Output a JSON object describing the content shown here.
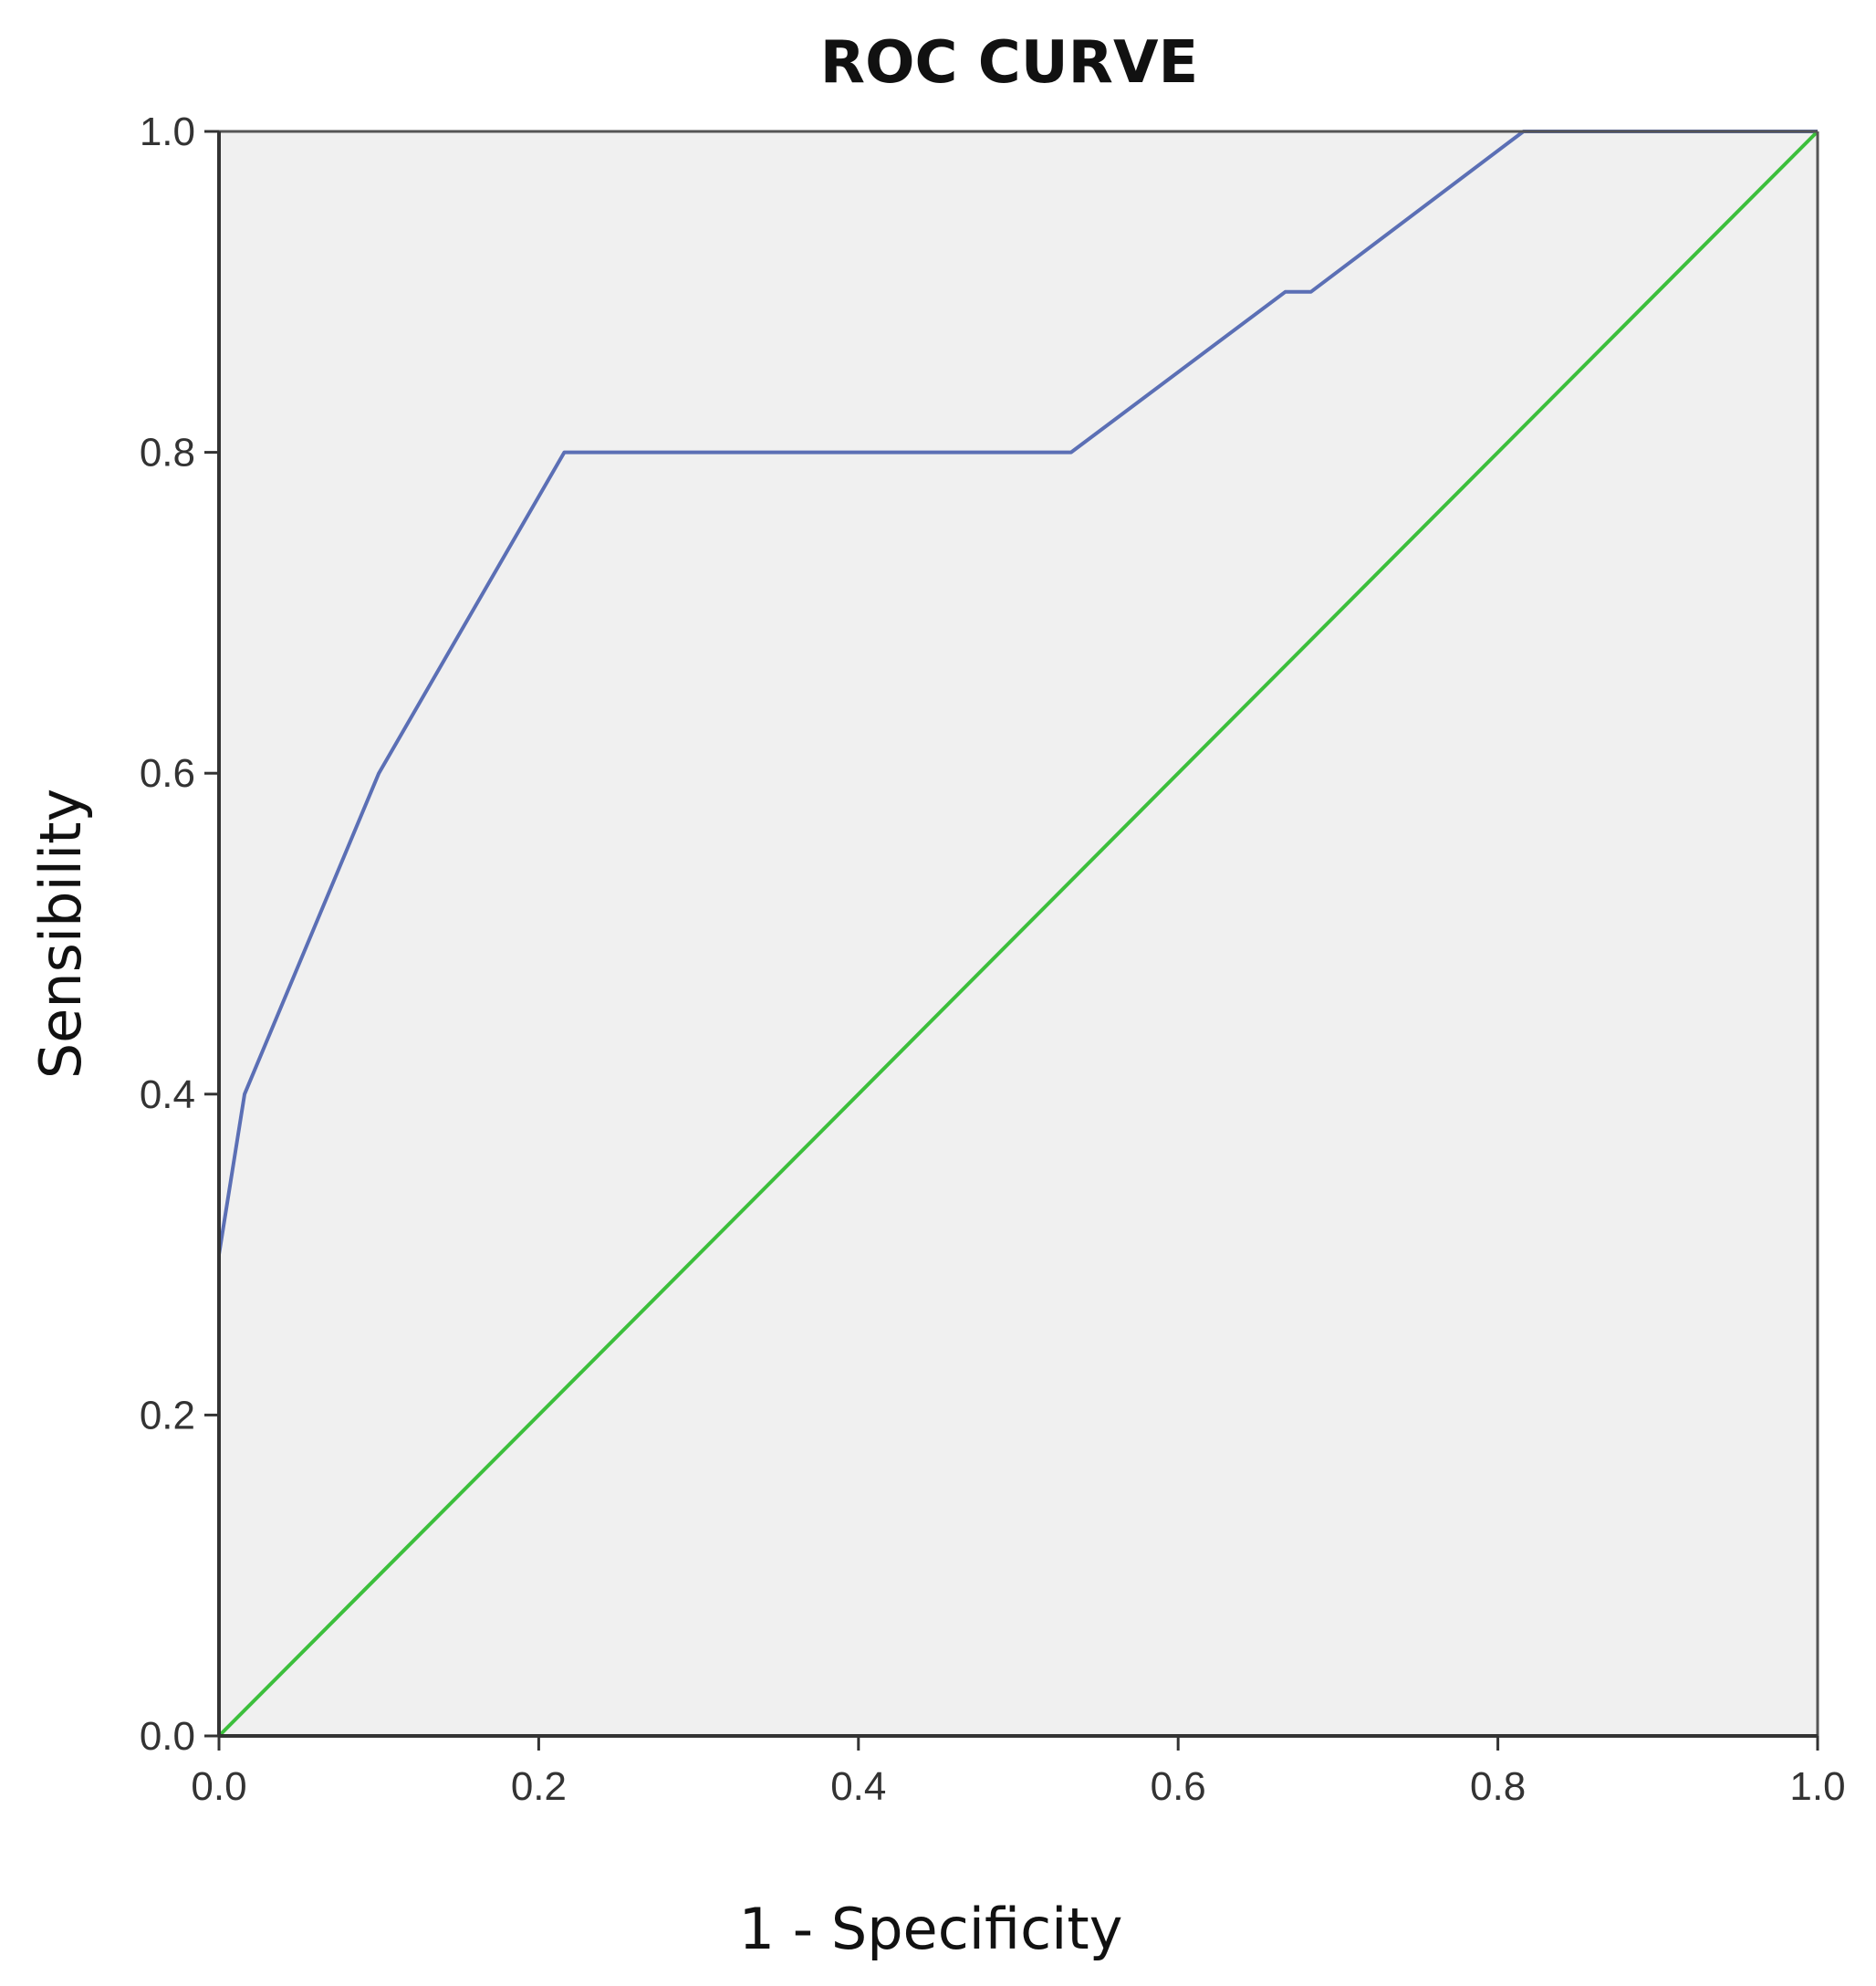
{
  "chart_data": {
    "type": "line",
    "title": "ROC CURVE",
    "xlabel": "1 - Specificity",
    "ylabel": "Sensibility",
    "xlim": [
      0.0,
      1.0
    ],
    "ylim": [
      0.0,
      1.0
    ],
    "x_ticks": [
      "0.0",
      "0.2",
      "0.4",
      "0.6",
      "0.8",
      "1.0"
    ],
    "y_ticks": [
      "0.0",
      "0.2",
      "0.4",
      "0.6",
      "0.8",
      "1.0"
    ],
    "grid": false,
    "legend": "none",
    "plot_background": "#f0f0f0",
    "series": [
      {
        "color": "#5b6fb5",
        "points": [
          [
            0.0,
            0.0
          ],
          [
            0.0,
            0.3
          ],
          [
            0.016,
            0.4
          ],
          [
            0.1,
            0.6
          ],
          [
            0.216,
            0.8
          ],
          [
            0.533,
            0.8
          ],
          [
            0.667,
            0.9
          ],
          [
            0.683,
            0.9
          ],
          [
            0.816,
            1.0
          ],
          [
            1.0,
            1.0
          ]
        ]
      },
      {
        "color": "#3cbf3c",
        "points": [
          [
            0.0,
            0.0
          ],
          [
            1.0,
            1.0
          ]
        ]
      }
    ]
  }
}
